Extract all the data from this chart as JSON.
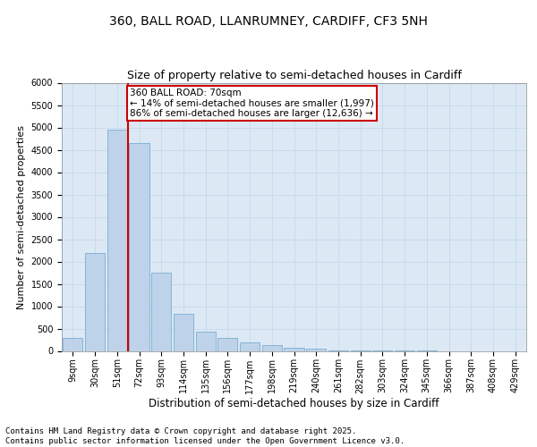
{
  "title1": "360, BALL ROAD, LLANRUMNEY, CARDIFF, CF3 5NH",
  "title2": "Size of property relative to semi-detached houses in Cardiff",
  "xlabel": "Distribution of semi-detached houses by size in Cardiff",
  "ylabel": "Number of semi-detached properties",
  "categories": [
    "9sqm",
    "30sqm",
    "51sqm",
    "72sqm",
    "93sqm",
    "114sqm",
    "135sqm",
    "156sqm",
    "177sqm",
    "198sqm",
    "219sqm",
    "240sqm",
    "261sqm",
    "282sqm",
    "303sqm",
    "324sqm",
    "345sqm",
    "366sqm",
    "387sqm",
    "408sqm",
    "429sqm"
  ],
  "values": [
    300,
    2200,
    4950,
    4650,
    1750,
    830,
    430,
    300,
    200,
    130,
    70,
    55,
    10,
    5,
    3,
    2,
    1,
    0,
    0,
    0,
    0
  ],
  "bar_color": "#bed3e9",
  "bar_edge_color": "#7aadd4",
  "vline_color": "#cc0000",
  "vline_index": 2.5,
  "annotation_text": "360 BALL ROAD: 70sqm\n← 14% of semi-detached houses are smaller (1,997)\n86% of semi-detached houses are larger (12,636) →",
  "annotation_box_color": "#ffffff",
  "annotation_box_edge": "#cc0000",
  "ylim": [
    0,
    6000
  ],
  "yticks": [
    0,
    500,
    1000,
    1500,
    2000,
    2500,
    3000,
    3500,
    4000,
    4500,
    5000,
    5500,
    6000
  ],
  "grid_color": "#c5d8ec",
  "bg_color": "#dce9f5",
  "footer": "Contains HM Land Registry data © Crown copyright and database right 2025.\nContains public sector information licensed under the Open Government Licence v3.0.",
  "title1_fontsize": 10,
  "title2_fontsize": 9,
  "xlabel_fontsize": 8.5,
  "ylabel_fontsize": 8,
  "tick_fontsize": 7,
  "footer_fontsize": 6.5,
  "annot_fontsize": 7.5
}
